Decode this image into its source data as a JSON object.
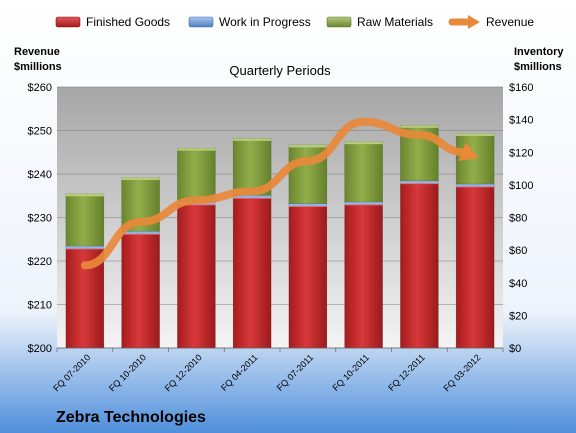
{
  "chart_data": {
    "type": "bar",
    "subtitle": "Quarterly Periods",
    "company": "Zebra Technologies",
    "left_axis_label": [
      "Revenue",
      "$millions"
    ],
    "right_axis_label": [
      "Inventory",
      "$millions"
    ],
    "categories": [
      "FQ 07-2010",
      "FQ 10-2010",
      "FQ 12-2010",
      "FQ 04-2011",
      "FQ 07-2011",
      "FQ 10-2011",
      "FQ 12-2011",
      "FQ 03-2012"
    ],
    "series": [
      {
        "name": "Finished Goods",
        "axis": "right",
        "stack": "inventory",
        "color": "#c0282a",
        "values": [
          62,
          71,
          89,
          93,
          88,
          89,
          102,
          100
        ]
      },
      {
        "name": "Work in Progress",
        "axis": "right",
        "stack": "inventory",
        "color": "#4f7fc1",
        "values": [
          0.5,
          0.5,
          0.5,
          0.5,
          0.5,
          0.5,
          0.5,
          0.5
        ]
      },
      {
        "name": "Raw Materials",
        "axis": "right",
        "stack": "inventory",
        "color": "#7f9a3a",
        "values": [
          32,
          33,
          33,
          35,
          36,
          37,
          34,
          31
        ]
      },
      {
        "name": "Revenue",
        "axis": "left",
        "type": "line",
        "color": "#e8893a",
        "values": [
          219,
          229,
          234,
          236,
          243,
          252,
          249,
          244
        ]
      }
    ],
    "left_axis": {
      "min": 200,
      "max": 260,
      "ticks": [
        "$200",
        "$210",
        "$220",
        "$230",
        "$240",
        "$250",
        "$260"
      ]
    },
    "right_axis": {
      "min": 0,
      "max": 160,
      "ticks": [
        "$0",
        "$20",
        "$40",
        "$60",
        "$80",
        "$100",
        "$120",
        "$140",
        "$160"
      ]
    },
    "legend_position": "top",
    "grid": true
  }
}
